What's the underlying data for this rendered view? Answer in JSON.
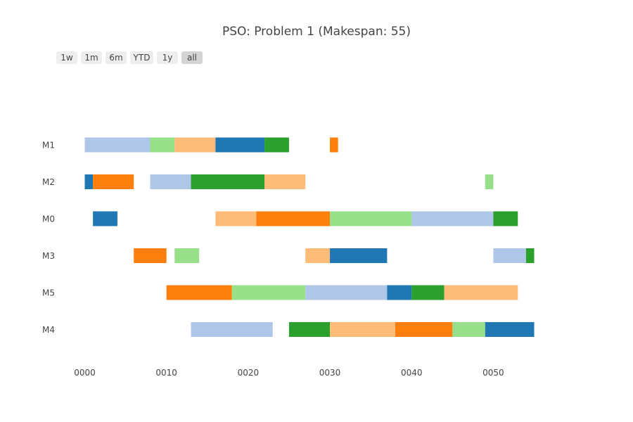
{
  "chart_data": {
    "type": "bar",
    "orientation": "horizontal-gantt",
    "title": "PSO: Problem 1 (Makespan: 55)",
    "xlabel": "",
    "ylabel": "",
    "xlim": [
      0,
      55
    ],
    "x_ticks": [
      {
        "value": 0,
        "label": "0000"
      },
      {
        "value": 10,
        "label": "0010"
      },
      {
        "value": 20,
        "label": "0020"
      },
      {
        "value": 30,
        "label": "0030"
      },
      {
        "value": 40,
        "label": "0040"
      },
      {
        "value": 50,
        "label": "0050"
      }
    ],
    "categories": [
      "M1",
      "M2",
      "M0",
      "M3",
      "M5",
      "M4"
    ],
    "grid": false,
    "legend": "none",
    "range_selector": {
      "buttons": [
        "1w",
        "1m",
        "6m",
        "YTD",
        "1y",
        "all"
      ],
      "active": "all"
    },
    "job_colors": [
      "#aec7e8",
      "#98df8a",
      "#ffbb78",
      "#1f77b4",
      "#2ca02c",
      "#ff7f0e"
    ],
    "tasks": [
      {
        "machine": "M1",
        "start": 0,
        "end": 8,
        "job": 0
      },
      {
        "machine": "M1",
        "start": 8,
        "end": 11,
        "job": 1
      },
      {
        "machine": "M1",
        "start": 11,
        "end": 16,
        "job": 2
      },
      {
        "machine": "M1",
        "start": 16,
        "end": 22,
        "job": 3
      },
      {
        "machine": "M1",
        "start": 22,
        "end": 25,
        "job": 4
      },
      {
        "machine": "M1",
        "start": 30,
        "end": 31,
        "job": 5
      },
      {
        "machine": "M2",
        "start": 0,
        "end": 1,
        "job": 3
      },
      {
        "machine": "M2",
        "start": 1,
        "end": 6,
        "job": 5
      },
      {
        "machine": "M2",
        "start": 8,
        "end": 13,
        "job": 0
      },
      {
        "machine": "M2",
        "start": 13,
        "end": 22,
        "job": 4
      },
      {
        "machine": "M2",
        "start": 22,
        "end": 27,
        "job": 2
      },
      {
        "machine": "M2",
        "start": 49,
        "end": 50,
        "job": 1
      },
      {
        "machine": "M0",
        "start": 1,
        "end": 4,
        "job": 3
      },
      {
        "machine": "M0",
        "start": 16,
        "end": 21,
        "job": 2
      },
      {
        "machine": "M0",
        "start": 21,
        "end": 30,
        "job": 5
      },
      {
        "machine": "M0",
        "start": 30,
        "end": 40,
        "job": 1
      },
      {
        "machine": "M0",
        "start": 40,
        "end": 50,
        "job": 0
      },
      {
        "machine": "M0",
        "start": 50,
        "end": 53,
        "job": 4
      },
      {
        "machine": "M3",
        "start": 6,
        "end": 10,
        "job": 5
      },
      {
        "machine": "M3",
        "start": 11,
        "end": 14,
        "job": 1
      },
      {
        "machine": "M3",
        "start": 27,
        "end": 30,
        "job": 2
      },
      {
        "machine": "M3",
        "start": 30,
        "end": 37,
        "job": 3
      },
      {
        "machine": "M3",
        "start": 50,
        "end": 54,
        "job": 0
      },
      {
        "machine": "M3",
        "start": 54,
        "end": 55,
        "job": 4
      },
      {
        "machine": "M5",
        "start": 10,
        "end": 18,
        "job": 5
      },
      {
        "machine": "M5",
        "start": 18,
        "end": 27,
        "job": 1
      },
      {
        "machine": "M5",
        "start": 27,
        "end": 37,
        "job": 0
      },
      {
        "machine": "M5",
        "start": 37,
        "end": 40,
        "job": 3
      },
      {
        "machine": "M5",
        "start": 40,
        "end": 44,
        "job": 4
      },
      {
        "machine": "M5",
        "start": 44,
        "end": 53,
        "job": 2
      },
      {
        "machine": "M4",
        "start": 13,
        "end": 23,
        "job": 0
      },
      {
        "machine": "M4",
        "start": 25,
        "end": 30,
        "job": 4
      },
      {
        "machine": "M4",
        "start": 30,
        "end": 38,
        "job": 2
      },
      {
        "machine": "M4",
        "start": 38,
        "end": 45,
        "job": 5
      },
      {
        "machine": "M4",
        "start": 45,
        "end": 49,
        "job": 1
      },
      {
        "machine": "M4",
        "start": 49,
        "end": 55,
        "job": 3
      }
    ]
  }
}
